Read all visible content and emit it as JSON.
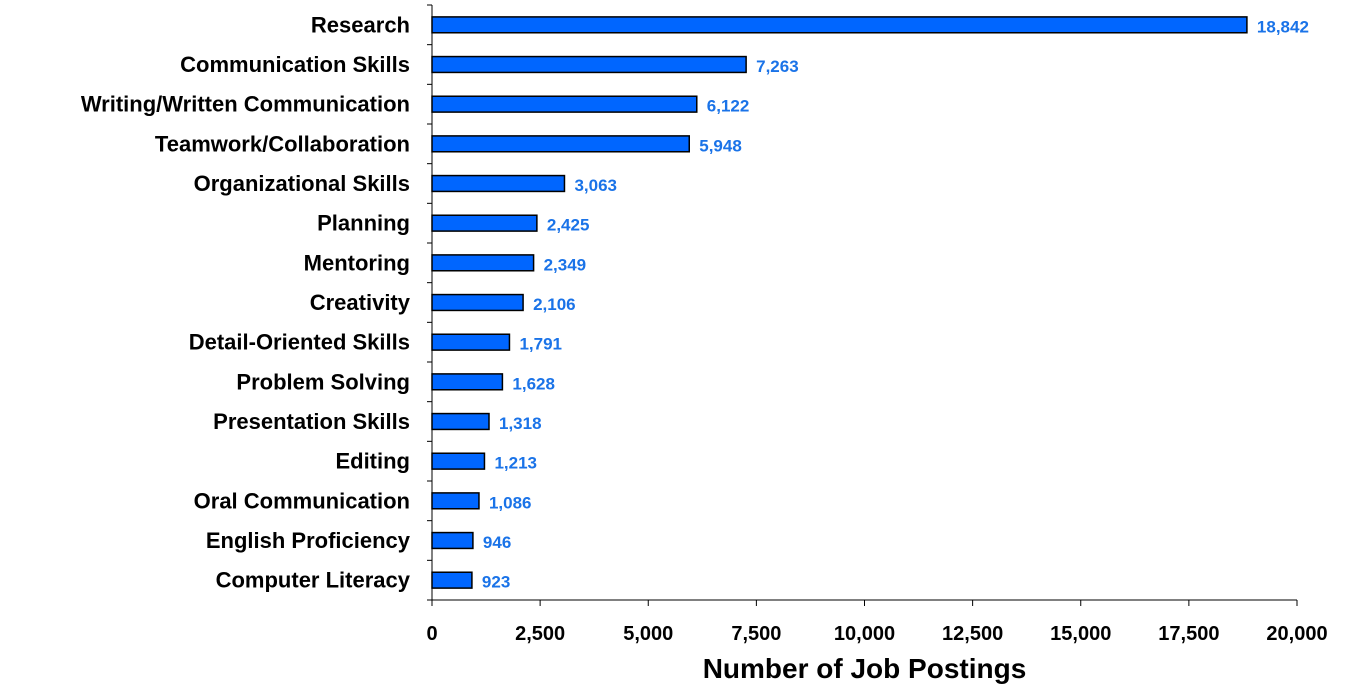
{
  "chart_data": {
    "type": "bar",
    "orientation": "horizontal",
    "categories": [
      "Research",
      "Communication Skills",
      "Writing/Written Communication",
      "Teamwork/Collaboration",
      "Organizational Skills",
      "Planning",
      "Mentoring",
      "Creativity",
      "Detail-Oriented Skills",
      "Problem Solving",
      "Presentation Skills",
      "Editing",
      "Oral Communication",
      "English Proficiency",
      "Computer Literacy"
    ],
    "values": [
      18842,
      7263,
      6122,
      5948,
      3063,
      2425,
      2349,
      2106,
      1791,
      1628,
      1318,
      1213,
      1086,
      946,
      923
    ],
    "value_labels": [
      "18,842",
      "7,263",
      "6,122",
      "5,948",
      "3,063",
      "2,425",
      "2,349",
      "2,106",
      "1,791",
      "1,628",
      "1,318",
      "1,213",
      "1,086",
      "946",
      "923"
    ],
    "xlabel": "Number of Job Postings",
    "ylabel": "",
    "xlim": [
      0,
      20000
    ],
    "xticks": [
      0,
      2500,
      5000,
      7500,
      10000,
      12500,
      15000,
      17500,
      20000
    ],
    "xtick_labels": [
      "0",
      "2,500",
      "5,000",
      "7,500",
      "10,000",
      "12,500",
      "15,000",
      "17,500",
      "20,000"
    ],
    "grid": false,
    "legend": "none",
    "bar_color": "#0066ff",
    "value_label_color": "#1a73e8"
  }
}
